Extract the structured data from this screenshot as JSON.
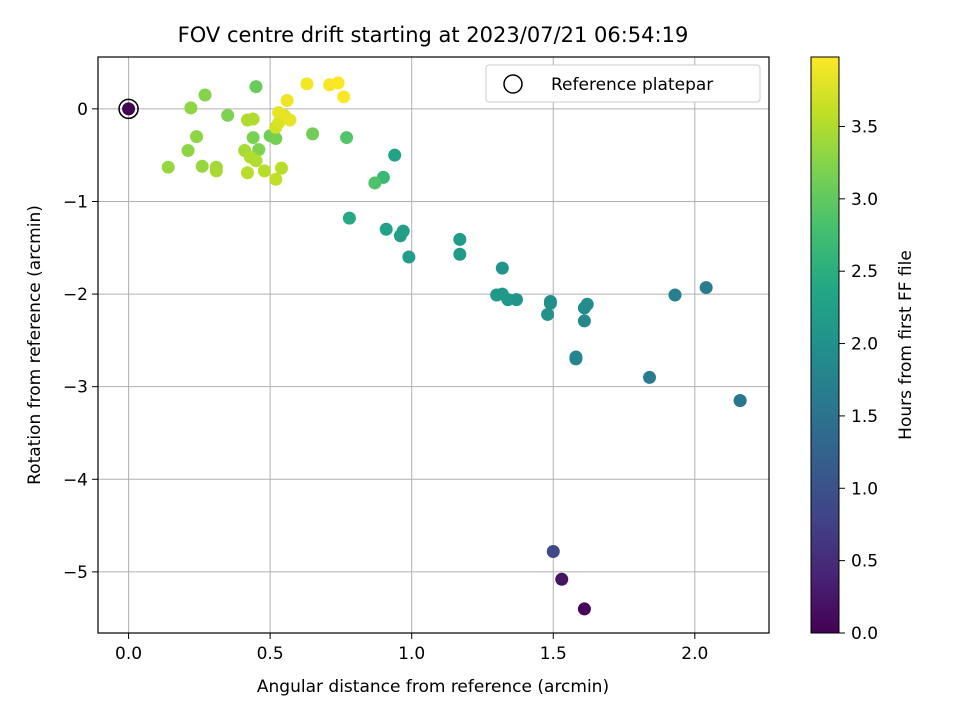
{
  "chart_data": {
    "type": "scatter",
    "title": "FOV centre drift starting at 2023/07/21 06:54:19",
    "xlabel": "Angular distance from reference (arcmin)",
    "ylabel": "Rotation from reference (arcmin)",
    "xlim": [
      -0.108,
      2.262
    ],
    "ylim": [
      -5.66,
      0.56
    ],
    "xticks": [
      0.0,
      0.5,
      1.0,
      1.5,
      2.0
    ],
    "yticks": [
      0,
      -1,
      -2,
      -3,
      -4,
      -5
    ],
    "xtick_labels": [
      "0.0",
      "0.5",
      "1.0",
      "1.5",
      "2.0"
    ],
    "ytick_labels": [
      "0",
      "−1",
      "−2",
      "−3",
      "−4",
      "−5"
    ],
    "grid": true,
    "legend": {
      "placement": "top-right",
      "label": "Reference platepar"
    },
    "reference_point": {
      "x": 0.0,
      "y": 0.0
    },
    "colorbar": {
      "label": "Hours from first FF file",
      "min": 0.0,
      "max": 3.98,
      "ticks": [
        0.0,
        0.5,
        1.0,
        1.5,
        2.0,
        2.5,
        3.0,
        3.5
      ],
      "tick_labels": [
        "0.0",
        "0.5",
        "1.0",
        "1.5",
        "2.0",
        "2.5",
        "3.0",
        "3.5"
      ],
      "colormap": "viridis"
    },
    "points": [
      {
        "x": 0.0,
        "y": 0.0,
        "c": 0.0
      },
      {
        "x": 1.61,
        "y": -5.4,
        "c": 0.05
      },
      {
        "x": 1.53,
        "y": -5.08,
        "c": 0.2
      },
      {
        "x": 1.5,
        "y": -4.78,
        "c": 0.85
      },
      {
        "x": 2.16,
        "y": -3.15,
        "c": 1.55
      },
      {
        "x": 2.16,
        "y": -3.15,
        "c": 1.58
      },
      {
        "x": 1.84,
        "y": -2.9,
        "c": 1.65
      },
      {
        "x": 2.04,
        "y": -1.93,
        "c": 1.65
      },
      {
        "x": 1.93,
        "y": -2.01,
        "c": 1.72
      },
      {
        "x": 1.58,
        "y": -2.7,
        "c": 1.78
      },
      {
        "x": 1.58,
        "y": -2.68,
        "c": 1.8
      },
      {
        "x": 1.61,
        "y": -2.29,
        "c": 1.85
      },
      {
        "x": 1.61,
        "y": -2.15,
        "c": 1.9
      },
      {
        "x": 1.62,
        "y": -2.11,
        "c": 1.92
      },
      {
        "x": 1.49,
        "y": -2.1,
        "c": 1.95
      },
      {
        "x": 1.49,
        "y": -2.08,
        "c": 1.98
      },
      {
        "x": 1.48,
        "y": -2.22,
        "c": 2.0
      },
      {
        "x": 1.37,
        "y": -2.06,
        "c": 2.05
      },
      {
        "x": 1.34,
        "y": -2.06,
        "c": 2.08
      },
      {
        "x": 1.32,
        "y": -2.0,
        "c": 2.1
      },
      {
        "x": 1.3,
        "y": -2.01,
        "c": 2.12
      },
      {
        "x": 1.32,
        "y": -1.72,
        "c": 2.05
      },
      {
        "x": 1.17,
        "y": -1.57,
        "c": 2.15
      },
      {
        "x": 1.17,
        "y": -1.41,
        "c": 2.18
      },
      {
        "x": 0.99,
        "y": -1.6,
        "c": 2.2
      },
      {
        "x": 0.96,
        "y": -1.37,
        "c": 2.22
      },
      {
        "x": 0.97,
        "y": -1.32,
        "c": 2.25
      },
      {
        "x": 0.91,
        "y": -1.3,
        "c": 2.28
      },
      {
        "x": 0.94,
        "y": -0.5,
        "c": 2.3
      },
      {
        "x": 0.78,
        "y": -1.18,
        "c": 2.4
      },
      {
        "x": 0.9,
        "y": -0.74,
        "c": 2.65
      },
      {
        "x": 0.87,
        "y": -0.8,
        "c": 2.85
      },
      {
        "x": 0.77,
        "y": -0.31,
        "c": 2.9
      },
      {
        "x": 0.65,
        "y": -0.27,
        "c": 3.1
      },
      {
        "x": 0.45,
        "y": 0.24,
        "c": 3.05
      },
      {
        "x": 0.5,
        "y": -0.29,
        "c": 3.1
      },
      {
        "x": 0.52,
        "y": -0.32,
        "c": 3.15
      },
      {
        "x": 0.46,
        "y": -0.44,
        "c": 3.2
      },
      {
        "x": 0.44,
        "y": -0.31,
        "c": 3.18
      },
      {
        "x": 0.35,
        "y": -0.07,
        "c": 3.2
      },
      {
        "x": 0.27,
        "y": 0.15,
        "c": 3.25
      },
      {
        "x": 0.22,
        "y": 0.01,
        "c": 3.3
      },
      {
        "x": 0.24,
        "y": -0.3,
        "c": 3.3
      },
      {
        "x": 0.21,
        "y": -0.45,
        "c": 3.3
      },
      {
        "x": 0.26,
        "y": -0.62,
        "c": 3.35
      },
      {
        "x": 0.14,
        "y": -0.63,
        "c": 3.35
      },
      {
        "x": 0.31,
        "y": -0.63,
        "c": 3.4
      },
      {
        "x": 0.31,
        "y": -0.67,
        "c": 3.45
      },
      {
        "x": 0.41,
        "y": -0.45,
        "c": 3.45
      },
      {
        "x": 0.43,
        "y": -0.52,
        "c": 3.5
      },
      {
        "x": 0.45,
        "y": -0.56,
        "c": 3.5
      },
      {
        "x": 0.48,
        "y": -0.67,
        "c": 3.55
      },
      {
        "x": 0.42,
        "y": -0.69,
        "c": 3.55
      },
      {
        "x": 0.52,
        "y": -0.76,
        "c": 3.6
      },
      {
        "x": 0.54,
        "y": -0.64,
        "c": 3.55
      },
      {
        "x": 0.42,
        "y": -0.12,
        "c": 3.5
      },
      {
        "x": 0.44,
        "y": -0.11,
        "c": 3.5
      },
      {
        "x": 0.52,
        "y": -0.2,
        "c": 3.7
      },
      {
        "x": 0.53,
        "y": -0.15,
        "c": 3.75
      },
      {
        "x": 0.55,
        "y": -0.07,
        "c": 3.8
      },
      {
        "x": 0.57,
        "y": -0.12,
        "c": 3.85
      },
      {
        "x": 0.53,
        "y": -0.04,
        "c": 3.85
      },
      {
        "x": 0.56,
        "y": 0.09,
        "c": 3.9
      },
      {
        "x": 0.63,
        "y": 0.27,
        "c": 3.92
      },
      {
        "x": 0.71,
        "y": 0.26,
        "c": 3.95
      },
      {
        "x": 0.74,
        "y": 0.28,
        "c": 3.96
      },
      {
        "x": 0.76,
        "y": 0.13,
        "c": 3.97
      }
    ]
  }
}
